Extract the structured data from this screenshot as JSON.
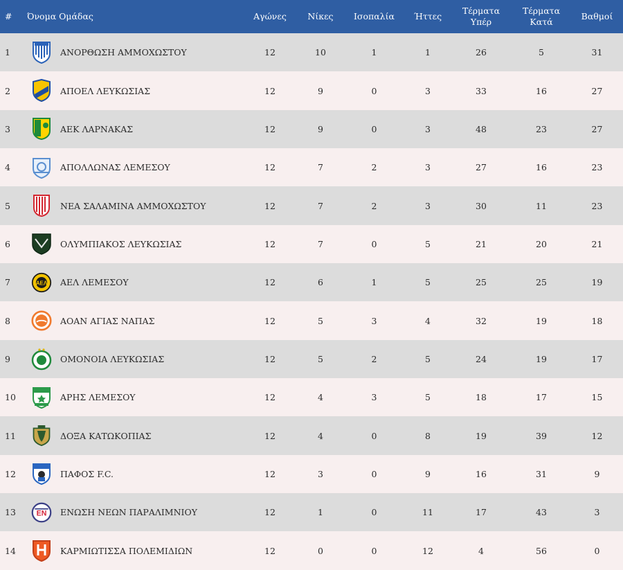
{
  "header": {
    "pos": "#",
    "team": "Όνομα Ομάδας",
    "played": "Αγώνες",
    "wins": "Νίκες",
    "draws": "Ισοπαλία",
    "losses": "Ήττες",
    "goals_for_1": "Τέρματα",
    "goals_for_2": "Υπέρ",
    "goals_against_1": "Τέρματα",
    "goals_against_2": "Κατά",
    "points": "Βαθμοί"
  },
  "rows": [
    {
      "pos": "1",
      "team": "ΑΝΟΡΘΩΣΗ ΑΜΜΟΧΩΣΤΟΥ",
      "played": "12",
      "wins": "10",
      "draws": "1",
      "losses": "1",
      "gf": "26",
      "ga": "5",
      "pts": "31",
      "logo": "anorthosis-crest-icon"
    },
    {
      "pos": "2",
      "team": "ΑΠΟΕΛ ΛΕΥΚΩΣΙΑΣ",
      "played": "12",
      "wins": "9",
      "draws": "0",
      "losses": "3",
      "gf": "33",
      "ga": "16",
      "pts": "27",
      "logo": "apoel-crest-icon"
    },
    {
      "pos": "3",
      "team": "ΑΕΚ ΛΑΡΝΑΚΑΣ",
      "played": "12",
      "wins": "9",
      "draws": "0",
      "losses": "3",
      "gf": "48",
      "ga": "23",
      "pts": "27",
      "logo": "aek-crest-icon"
    },
    {
      "pos": "4",
      "team": "ΑΠΟΛΛΩΝΑΣ ΛΕΜΕΣΟΥ",
      "played": "12",
      "wins": "7",
      "draws": "2",
      "losses": "3",
      "gf": "27",
      "ga": "16",
      "pts": "23",
      "logo": "apollon-crest-icon"
    },
    {
      "pos": "5",
      "team": "ΝΕΑ ΣΑΛΑΜΙΝΑ ΑΜΜΟΧΩΣΤΟΥ",
      "played": "12",
      "wins": "7",
      "draws": "2",
      "losses": "3",
      "gf": "30",
      "ga": "11",
      "pts": "23",
      "logo": "nea-salamina-crest-icon"
    },
    {
      "pos": "6",
      "team": "ΟΛΥΜΠΙΑΚΟΣ ΛΕΥΚΩΣΙΑΣ",
      "played": "12",
      "wins": "7",
      "draws": "0",
      "losses": "5",
      "gf": "21",
      "ga": "20",
      "pts": "21",
      "logo": "olympiakos-crest-icon"
    },
    {
      "pos": "7",
      "team": "ΑΕΛ ΛΕΜΕΣΟΥ",
      "played": "12",
      "wins": "6",
      "draws": "1",
      "losses": "5",
      "gf": "25",
      "ga": "25",
      "pts": "19",
      "logo": "ael-crest-icon"
    },
    {
      "pos": "8",
      "team": "ΑΟΑΝ ΑΓΙΑΣ ΝΑΠΑΣ",
      "played": "12",
      "wins": "5",
      "draws": "3",
      "losses": "4",
      "gf": "32",
      "ga": "19",
      "pts": "18",
      "logo": "aoan-crest-icon"
    },
    {
      "pos": "9",
      "team": "ΟΜΟΝΟΙΑ ΛΕΥΚΩΣΙΑΣ",
      "played": "12",
      "wins": "5",
      "draws": "2",
      "losses": "5",
      "gf": "24",
      "ga": "19",
      "pts": "17",
      "logo": "omonoia-crest-icon"
    },
    {
      "pos": "10",
      "team": "ΑΡΗΣ ΛΕΜΕΣΟΥ",
      "played": "12",
      "wins": "4",
      "draws": "3",
      "losses": "5",
      "gf": "18",
      "ga": "17",
      "pts": "15",
      "logo": "aris-crest-icon"
    },
    {
      "pos": "11",
      "team": "ΔΟΞΑ ΚΑΤΩΚΟΠΙΑΣ",
      "played": "12",
      "wins": "4",
      "draws": "0",
      "losses": "8",
      "gf": "19",
      "ga": "39",
      "pts": "12",
      "logo": "doxa-crest-icon"
    },
    {
      "pos": "12",
      "team": "ΠΑΦΟΣ F.C.",
      "played": "12",
      "wins": "3",
      "draws": "0",
      "losses": "9",
      "gf": "16",
      "ga": "31",
      "pts": "9",
      "logo": "pafos-crest-icon"
    },
    {
      "pos": "13",
      "team": "ΕΝΩΣΗ ΝΕΩΝ ΠΑΡΑΛΙΜΝΙΟΥ",
      "played": "12",
      "wins": "1",
      "draws": "0",
      "losses": "11",
      "gf": "17",
      "ga": "43",
      "pts": "3",
      "logo": "enp-crest-icon"
    },
    {
      "pos": "14",
      "team": "ΚΑΡΜΙΩΤΙΣΣΑ ΠΟΛΕΜΙΔΙΩΝ",
      "played": "12",
      "wins": "0",
      "draws": "0",
      "losses": "12",
      "gf": "4",
      "ga": "56",
      "pts": "0",
      "logo": "karmiotissa-crest-icon"
    }
  ]
}
